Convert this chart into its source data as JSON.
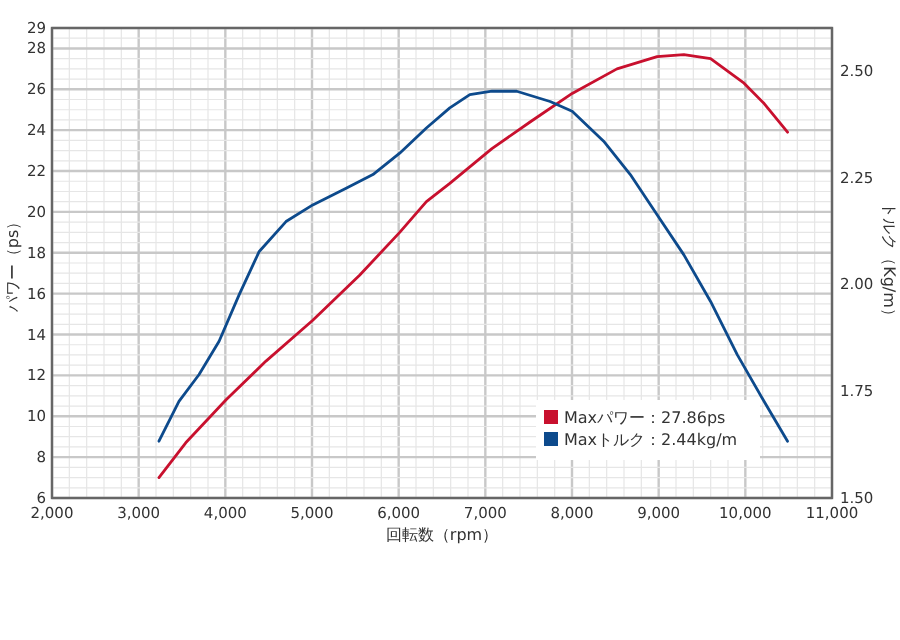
{
  "chart_data": {
    "type": "line",
    "xlabel": "回転数（rpm）",
    "ylabel": "パワー（ps）",
    "y2label": "トルク（Kg/m）",
    "xlim": [
      2000,
      11000
    ],
    "xticks": [
      {
        "value": 2000,
        "label": "2,000"
      },
      {
        "value": 3000,
        "label": "3,000"
      },
      {
        "value": 4000,
        "label": "4,000"
      },
      {
        "value": 5000,
        "label": "5,000"
      },
      {
        "value": 6000,
        "label": "6,000"
      },
      {
        "value": 7000,
        "label": "7,000"
      },
      {
        "value": 8000,
        "label": "8,000"
      },
      {
        "value": 9000,
        "label": "9,000"
      },
      {
        "value": 10000,
        "label": "10,000"
      },
      {
        "value": 11000,
        "label": "11,000"
      }
    ],
    "ylim": [
      6,
      29
    ],
    "yticks": [
      6,
      8,
      10,
      12,
      14,
      16,
      18,
      20,
      22,
      24,
      26,
      28,
      29
    ],
    "y2lim": [
      1.5,
      2.6
    ],
    "y2ticks": [
      {
        "value": 1.5,
        "label": "1.50"
      },
      1.75,
      {
        "value": 2,
        "label": "2.00"
      },
      2.25,
      {
        "value": 2.5,
        "label": "2.50"
      }
    ],
    "grid": true,
    "legend": "bottom right",
    "series": [
      {
        "name": "Maxパワー：27.86ps",
        "color": "#c8102e",
        "x": [
          3234,
          3543,
          4006,
          4469,
          5009,
          5549,
          6012,
          6320,
          6590,
          7076,
          7516,
          8002,
          8519,
          8982,
          9291,
          9599,
          9985,
          10217,
          10487
        ],
        "values": [
          7.0,
          8.7,
          10.8,
          12.7,
          14.7,
          16.9,
          19.0,
          20.5,
          21.4,
          23.1,
          24.4,
          25.8,
          27.0,
          27.6,
          27.7,
          27.5,
          26.3,
          25.3,
          23.9
        ]
      },
      {
        "name": "Maxトルク：2.44kg/m",
        "color": "#0d4a8c",
        "axis": "y2",
        "x": [
          3234,
          3465,
          3697,
          3928,
          4160,
          4391,
          4700,
          5009,
          5394,
          5703,
          6012,
          6320,
          6590,
          6821,
          7076,
          7362,
          7747,
          8002,
          8365,
          8673,
          8982,
          9291,
          9599,
          9908,
          10217,
          10487
        ],
        "values": [
          1.633,
          1.726,
          1.789,
          1.867,
          1.976,
          2.077,
          2.147,
          2.186,
          2.225,
          2.257,
          2.307,
          2.366,
          2.413,
          2.444,
          2.452,
          2.452,
          2.428,
          2.405,
          2.335,
          2.257,
          2.163,
          2.069,
          1.96,
          1.835,
          1.726,
          1.633
        ]
      }
    ]
  }
}
